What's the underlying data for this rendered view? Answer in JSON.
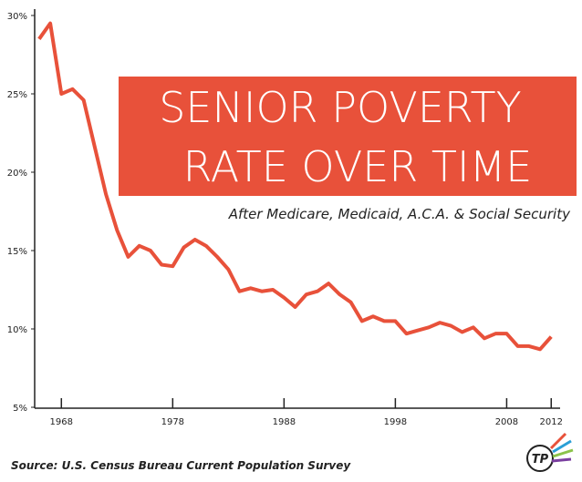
{
  "chart_data": {
    "type": "line",
    "title": [
      "SENIOR POVERTY",
      "RATE OVER TIME"
    ],
    "subtitle": "After Medicare, Medicaid, A.C.A. & Social Security",
    "source": "Source: U.S. Census Bureau Current Population Survey",
    "x": [
      1966,
      1967,
      1968,
      1969,
      1970,
      1971,
      1972,
      1973,
      1974,
      1975,
      1976,
      1977,
      1978,
      1979,
      1980,
      1981,
      1982,
      1983,
      1984,
      1985,
      1986,
      1987,
      1988,
      1989,
      1990,
      1991,
      1992,
      1993,
      1994,
      1995,
      1996,
      1997,
      1998,
      1999,
      2000,
      2001,
      2002,
      2003,
      2004,
      2005,
      2006,
      2007,
      2008,
      2009,
      2010,
      2011,
      2012
    ],
    "series": [
      {
        "color": "#e8513a",
        "values": [
          28.5,
          29.5,
          25.0,
          25.3,
          24.6,
          21.6,
          18.6,
          16.3,
          14.6,
          15.3,
          15.0,
          14.1,
          14.0,
          15.2,
          15.7,
          15.3,
          14.6,
          13.8,
          12.4,
          12.6,
          12.4,
          12.5,
          12.0,
          11.4,
          12.2,
          12.4,
          12.9,
          12.2,
          11.7,
          10.5,
          10.8,
          10.5,
          10.5,
          9.7,
          9.9,
          10.1,
          10.4,
          10.2,
          9.8,
          10.1,
          9.4,
          9.7,
          9.7,
          8.9,
          8.9,
          8.7,
          9.5
        ]
      }
    ],
    "xlim": [
      1965.6,
      2012.8
    ],
    "xticks": [
      1968,
      1978,
      1988,
      1998,
      2008,
      2012
    ],
    "ylim": [
      5,
      30
    ],
    "yticks": [
      {
        "value": 5,
        "label": "5%"
      },
      {
        "value": 10,
        "label": "10%"
      },
      {
        "value": 15,
        "label": "15%"
      },
      {
        "value": 20,
        "label": "20%"
      },
      {
        "value": 25,
        "label": "25%"
      },
      {
        "value": 30,
        "label": "30%"
      }
    ]
  }
}
